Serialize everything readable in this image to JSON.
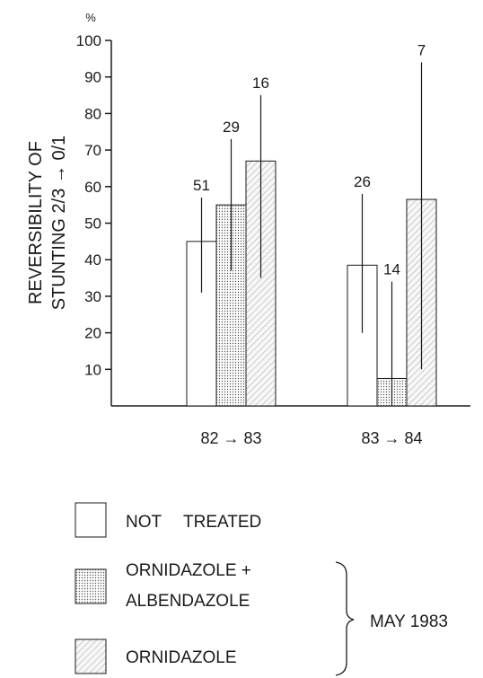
{
  "chart_data": {
    "type": "bar",
    "y_unit": "%",
    "ylabel_line1": "REVERSIBILITY OF",
    "ylabel_line2": "STUNTING 2/3 → 0/1",
    "ylim": [
      0,
      100
    ],
    "yticks": [
      10,
      20,
      30,
      40,
      50,
      60,
      70,
      80,
      90,
      100
    ],
    "categories": [
      "82 → 83",
      "83 → 84"
    ],
    "series": [
      {
        "name": "NOT TREATED",
        "pattern": "none",
        "values": [
          45,
          38.5
        ],
        "error_low": [
          31,
          20
        ],
        "error_high": [
          57,
          58
        ],
        "n": [
          "51",
          "26"
        ]
      },
      {
        "name": "ORNIDAZOLE + ALBENDAZOLE",
        "pattern": "dots",
        "values": [
          55,
          7.5
        ],
        "error_low": [
          37,
          0
        ],
        "error_high": [
          73,
          34
        ],
        "n": [
          "29",
          "14"
        ]
      },
      {
        "name": "ORNIDAZOLE",
        "pattern": "hatch",
        "values": [
          67,
          56.5
        ],
        "error_low": [
          35,
          10
        ],
        "error_high": [
          85,
          94
        ],
        "n": [
          "16",
          "7"
        ]
      }
    ],
    "legend": {
      "items": [
        {
          "label_lines": [
            "NOT",
            "TREATED"
          ],
          "pattern": "none"
        },
        {
          "label_lines": [
            "ORNIDAZOLE +",
            "ALBENDAZOLE"
          ],
          "pattern": "dots"
        },
        {
          "label_lines": [
            "ORNIDAZOLE"
          ],
          "pattern": "hatch"
        }
      ],
      "bracket_label": "MAY 1983"
    }
  }
}
